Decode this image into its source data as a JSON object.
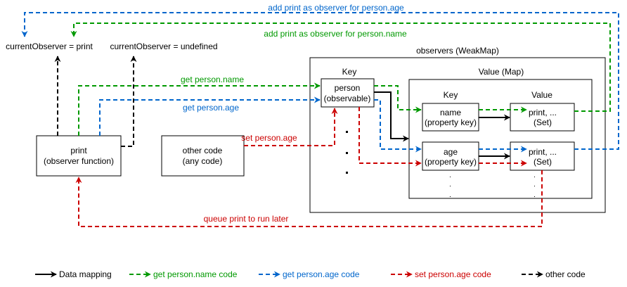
{
  "colors": {
    "green": "#009900",
    "blue": "#0066cc",
    "red": "#cc0000",
    "black": "#000000"
  },
  "labels": {
    "add_age": "add print as observer for person.age",
    "add_name": "add print as observer for person.name",
    "current_print": "currentObserver = print",
    "current_undefined": "currentObserver = undefined",
    "get_name": "get person.name",
    "get_age": "get person.age",
    "set_age": "set person.age",
    "queue": "queue print to run later"
  },
  "boxes": {
    "print": [
      "print",
      "(observer function)"
    ],
    "other": [
      "other code",
      "(any code)"
    ],
    "observers_title": "observers (WeakMap)",
    "key_title": "Key",
    "value_map_title": "Value (Map)",
    "person": [
      "person",
      "(observable)"
    ],
    "inner_key_title": "Key",
    "inner_value_title": "Value",
    "name": [
      "name",
      "(property key)"
    ],
    "age": [
      "age",
      "(property key)"
    ],
    "set1": [
      "print, ...",
      "(Set)"
    ],
    "set2": [
      "print, ...",
      "(Set)"
    ]
  },
  "legend": [
    {
      "label": "Data mapping",
      "color": "#000000",
      "dashed": false
    },
    {
      "label": "get person.name code",
      "color": "#009900",
      "dashed": true
    },
    {
      "label": "get person.age code",
      "color": "#0066cc",
      "dashed": true
    },
    {
      "label": "set person.age code",
      "color": "#cc0000",
      "dashed": true
    },
    {
      "label": "other code",
      "color": "#000000",
      "dashed": true
    }
  ]
}
